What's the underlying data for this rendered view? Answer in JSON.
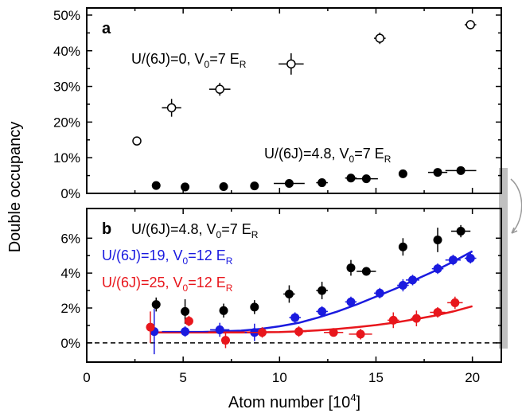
{
  "colors": {
    "black": "#000000",
    "blue": "#1a1adf",
    "red": "#e8161c",
    "side_bar": "#c0c0c0",
    "side_arrow": "#999999"
  },
  "axis_labels": {
    "ylabel": "Double occupancy",
    "xlabel": "Atom number [10",
    "xlabel_sup": "4",
    "xlabel_end": "]"
  },
  "chart_data": [
    {
      "panel": "a",
      "type": "scatter",
      "ylim": [
        0,
        52
      ],
      "yticks": [
        "0%",
        "10%",
        "20%",
        "30%",
        "40%",
        "50%"
      ],
      "ytick_values": [
        0,
        10,
        20,
        30,
        40,
        50
      ],
      "xlim": [
        0,
        21.5
      ],
      "grid": false,
      "series": [
        {
          "style": "open",
          "points": [
            {
              "x": 2.6,
              "y": 14.7,
              "xerr": 0.15,
              "yerr": 0.4
            },
            {
              "x": 4.4,
              "y": 24.0,
              "xerr": 0.5,
              "yerr": 2.5
            },
            {
              "x": 6.9,
              "y": 29.2,
              "xerr": 0.55,
              "yerr": 1.8
            },
            {
              "x": 10.6,
              "y": 36.3,
              "xerr": 0.65,
              "yerr": 3.0
            },
            {
              "x": 15.2,
              "y": 43.5,
              "xerr": 0.3,
              "yerr": 1.6
            },
            {
              "x": 19.9,
              "y": 47.3,
              "xerr": 0.3,
              "yerr": 1.3
            }
          ]
        },
        {
          "style": "filled",
          "points": [
            {
              "x": 3.6,
              "y": 2.2,
              "xerr": 0.1,
              "yerr": 0.3
            },
            {
              "x": 5.1,
              "y": 1.8,
              "xerr": 0.1,
              "yerr": 0.3
            },
            {
              "x": 7.1,
              "y": 1.9,
              "xerr": 0.1,
              "yerr": 0.3
            },
            {
              "x": 8.7,
              "y": 2.1,
              "xerr": 0.1,
              "yerr": 0.3
            },
            {
              "x": 10.5,
              "y": 2.8,
              "xerr": 0.8,
              "yerr": 0.3
            },
            {
              "x": 12.2,
              "y": 3.0,
              "xerr": 0.3,
              "yerr": 0.3
            },
            {
              "x": 13.7,
              "y": 4.3,
              "xerr": 0.3,
              "yerr": 0.3
            },
            {
              "x": 14.5,
              "y": 4.1,
              "xerr": 0.6,
              "yerr": 0.3
            },
            {
              "x": 16.4,
              "y": 5.5,
              "xerr": 0.2,
              "yerr": 0.3
            },
            {
              "x": 18.2,
              "y": 5.9,
              "xerr": 0.5,
              "yerr": 0.3
            },
            {
              "x": 19.4,
              "y": 6.4,
              "xerr": 0.8,
              "yerr": 0.3
            }
          ]
        }
      ],
      "annotations": [
        {
          "text": "U/(6J)=0, V",
          "sub": "0",
          "end": "=7 E",
          "sub2": "R"
        },
        {
          "text": "U/(6J)=4.8, V",
          "sub": "0",
          "end": "=7 E",
          "sub2": "R"
        }
      ]
    },
    {
      "panel": "b",
      "type": "scatter",
      "ylim": [
        -1.1,
        7.7
      ],
      "yticks": [
        "0%",
        "2%",
        "4%",
        "6%"
      ],
      "ytick_values": [
        0,
        2,
        4,
        6
      ],
      "xlim": [
        0,
        21.5
      ],
      "xticks": [
        "0",
        "5",
        "10",
        "15",
        "20"
      ],
      "xtick_values": [
        0,
        5,
        10,
        15,
        20
      ],
      "grid": false,
      "dashed_line_y": 0,
      "series": [
        {
          "color": "black",
          "points": [
            {
              "x": 3.6,
              "y": 2.2,
              "xerr": 0.1,
              "yerr": 0.4
            },
            {
              "x": 5.1,
              "y": 1.8,
              "xerr": 0.1,
              "yerr": 0.7
            },
            {
              "x": 7.1,
              "y": 1.85,
              "xerr": 0.1,
              "yerr": 0.4
            },
            {
              "x": 8.7,
              "y": 2.05,
              "xerr": 0.1,
              "yerr": 0.4
            },
            {
              "x": 10.5,
              "y": 2.8,
              "xerr": 0.3,
              "yerr": 0.5
            },
            {
              "x": 12.2,
              "y": 3.0,
              "xerr": 0.3,
              "yerr": 0.5
            },
            {
              "x": 13.7,
              "y": 4.3,
              "xerr": 0.15,
              "yerr": 0.45
            },
            {
              "x": 14.5,
              "y": 4.1,
              "xerr": 0.5,
              "yerr": 0.25
            },
            {
              "x": 16.4,
              "y": 5.5,
              "xerr": 0.2,
              "yerr": 0.5
            },
            {
              "x": 18.2,
              "y": 5.9,
              "xerr": 0.15,
              "yerr": 0.7
            },
            {
              "x": 19.4,
              "y": 6.4,
              "xerr": 0.5,
              "yerr": 0.35
            }
          ]
        },
        {
          "color": "blue",
          "points": [
            {
              "x": 3.5,
              "y": 0.65,
              "xerr": 0.15,
              "yerr": 1.3
            },
            {
              "x": 5.1,
              "y": 0.65,
              "xerr": 1.2,
              "yerr": 0.3
            },
            {
              "x": 6.9,
              "y": 0.75,
              "xerr": 0.5,
              "yerr": 0.4
            },
            {
              "x": 8.7,
              "y": 0.6,
              "xerr": 0.5,
              "yerr": 0.5
            },
            {
              "x": 10.8,
              "y": 1.45,
              "xerr": 0.3,
              "yerr": 0.3
            },
            {
              "x": 12.2,
              "y": 1.8,
              "xerr": 0.3,
              "yerr": 0.3
            },
            {
              "x": 13.7,
              "y": 2.35,
              "xerr": 0.3,
              "yerr": 0.3
            },
            {
              "x": 15.2,
              "y": 2.85,
              "xerr": 0.3,
              "yerr": 0.3
            },
            {
              "x": 16.4,
              "y": 3.3,
              "xerr": 0.3,
              "yerr": 0.35
            },
            {
              "x": 16.9,
              "y": 3.6,
              "xerr": 0.35,
              "yerr": 0.3
            },
            {
              "x": 18.2,
              "y": 4.25,
              "xerr": 0.3,
              "yerr": 0.3
            },
            {
              "x": 19.0,
              "y": 4.75,
              "xerr": 0.4,
              "yerr": 0.3
            },
            {
              "x": 19.9,
              "y": 4.85,
              "xerr": 0.3,
              "yerr": 0.3
            }
          ]
        },
        {
          "color": "red",
          "points": [
            {
              "x": 3.3,
              "y": 0.9,
              "xerr": 0.15,
              "yerr": 0.9
            },
            {
              "x": 5.3,
              "y": 1.25,
              "xerr": 0.1,
              "yerr": 0.3
            },
            {
              "x": 7.2,
              "y": 0.15,
              "xerr": 0.1,
              "yerr": 0.45
            },
            {
              "x": 9.1,
              "y": 0.6,
              "xerr": 0.8,
              "yerr": 0.3
            },
            {
              "x": 11.0,
              "y": 0.65,
              "xerr": 0.4,
              "yerr": 0.3
            },
            {
              "x": 12.8,
              "y": 0.6,
              "xerr": 0.5,
              "yerr": 0.2
            },
            {
              "x": 14.2,
              "y": 0.5,
              "xerr": 0.6,
              "yerr": 0.3
            },
            {
              "x": 15.9,
              "y": 1.3,
              "xerr": 0.3,
              "yerr": 0.45
            },
            {
              "x": 17.1,
              "y": 1.4,
              "xerr": 0.3,
              "yerr": 0.45
            },
            {
              "x": 18.2,
              "y": 1.75,
              "xerr": 0.4,
              "yerr": 0.3
            },
            {
              "x": 19.1,
              "y": 2.3,
              "xerr": 0.4,
              "yerr": 0.35
            }
          ]
        }
      ],
      "curves": [
        {
          "color": "blue",
          "x": [
            3.3,
            6,
            8,
            9,
            10,
            11,
            12,
            13,
            14,
            15,
            16,
            17,
            18,
            19,
            20
          ],
          "y": [
            0.6,
            0.62,
            0.7,
            0.8,
            0.95,
            1.15,
            1.45,
            1.8,
            2.2,
            2.65,
            3.1,
            3.6,
            4.1,
            4.65,
            5.25
          ]
        },
        {
          "color": "red",
          "x": [
            3.3,
            6,
            8,
            10,
            11,
            12,
            13,
            14,
            15,
            16,
            17,
            18,
            19,
            20
          ],
          "y": [
            0.6,
            0.6,
            0.6,
            0.62,
            0.66,
            0.72,
            0.8,
            0.9,
            1.02,
            1.17,
            1.35,
            1.55,
            1.8,
            2.1
          ]
        }
      ],
      "annotations": [
        {
          "color": "black",
          "text": "U/(6J)=4.8, V",
          "sub": "0",
          "end": "=7 E",
          "sub2": "R"
        },
        {
          "color": "blue",
          "text": "U/(6J)=19,  V",
          "sub": "0",
          "end": "=12 E",
          "sub2": "R"
        },
        {
          "color": "red",
          "text": "U/(6J)=25,  V",
          "sub": "0",
          "end": "=12 E",
          "sub2": "R"
        }
      ]
    }
  ],
  "panel_letters": [
    "a",
    "b"
  ]
}
